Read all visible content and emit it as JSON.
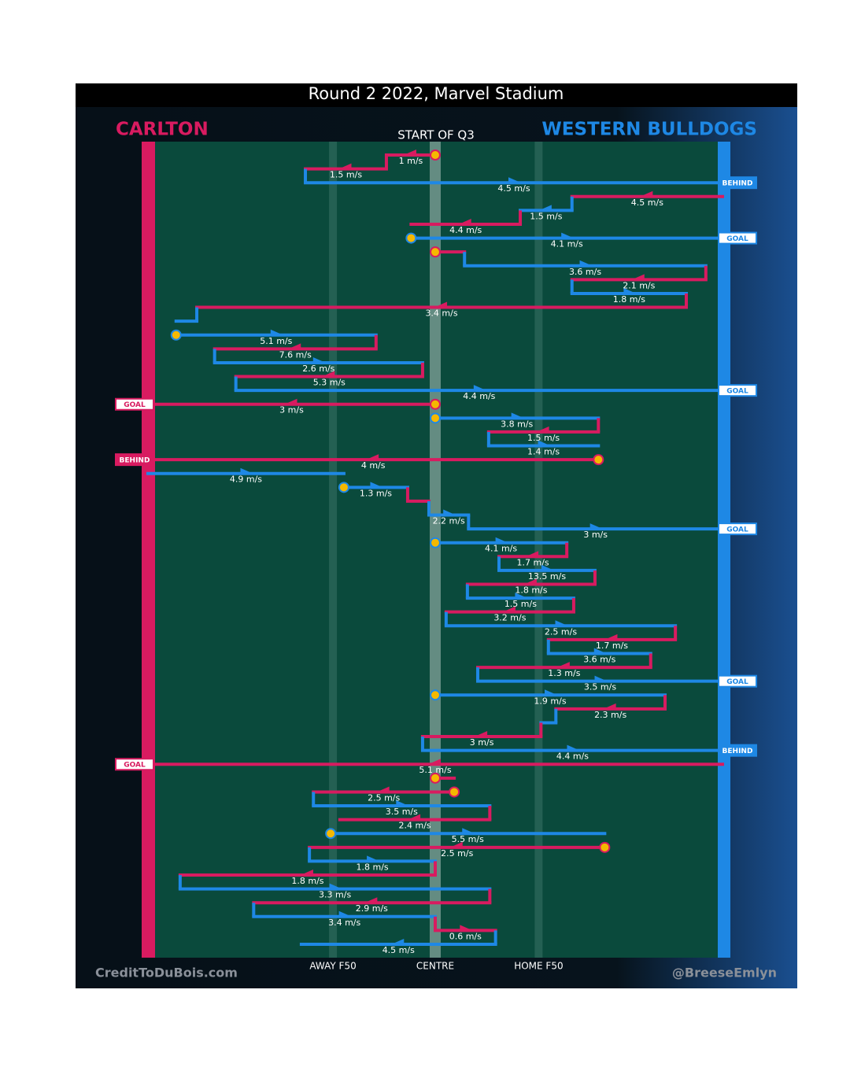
{
  "chart_data": {
    "type": "chain",
    "title": "Round 2 2022, Marvel Stadium",
    "subtitle": "START OF Q3",
    "teams": [
      {
        "name": "CARLTON",
        "color": "#d81b60"
      },
      {
        "name": "WESTERN BULLDOGS",
        "color": "#1e88e5"
      }
    ],
    "xlim": [
      0,
      100
    ],
    "markers": [
      {
        "label": "AWAY F50",
        "x": 32.2
      },
      {
        "label": "CENTRE",
        "x": 50
      },
      {
        "label": "HOME F50",
        "x": 68
      }
    ],
    "credits": [
      "CreditToDuBois.com",
      "@BreeseEmlyn"
    ],
    "segments": [
      {
        "team": "CARLTON",
        "from": 50,
        "to": 41.5,
        "speed": 1,
        "speed_label": "1 m/s",
        "dot": true
      },
      {
        "team": "CARLTON",
        "from": 41.5,
        "to": 27.4,
        "speed": 1.5,
        "speed_label": "1.5 m/s"
      },
      {
        "team": "WESTERN BULLDOGS",
        "from": 27.4,
        "to": 100,
        "speed": 4.5,
        "speed_label": "4.5 m/s",
        "outcome": "BEHIND"
      },
      {
        "team": "CARLTON",
        "from": 100,
        "to": 73.8,
        "speed": 4.5,
        "speed_label": "4.5 m/s"
      },
      {
        "team": "WESTERN BULLDOGS",
        "from": 73.8,
        "to": 64.8,
        "speed": 1.5,
        "speed_label": "1.5 m/s"
      },
      {
        "team": "CARLTON",
        "from": 64.8,
        "to": 45.8,
        "speed": 4.4,
        "speed_label": "4.4 m/s"
      },
      {
        "team": "WESTERN BULLDOGS",
        "from": 45.8,
        "to": 100,
        "speed": 4.1,
        "speed_label": "4.1 m/s",
        "outcome": "GOAL",
        "dot": true
      },
      {
        "team": "CARLTON",
        "from": 50,
        "to": 55.1,
        "speed": null,
        "speed_label": null,
        "dot": true
      },
      {
        "team": "WESTERN BULLDOGS",
        "from": 55.1,
        "to": 97.1,
        "speed": 3.6,
        "speed_label": "3.6 m/s"
      },
      {
        "team": "CARLTON",
        "from": 97.1,
        "to": 73.8,
        "speed": 2.1,
        "speed_label": "2.1 m/s"
      },
      {
        "team": "WESTERN BULLDOGS",
        "from": 73.8,
        "to": 93.7,
        "speed": 1.8,
        "speed_label": "1.8 m/s"
      },
      {
        "team": "CARLTON",
        "from": 93.7,
        "to": 8.5,
        "speed": 3.4,
        "speed_label": "3.4 m/s"
      },
      {
        "team": "WESTERN BULLDOGS",
        "from": 8.5,
        "to": 4.9,
        "speed": null,
        "speed_label": null
      },
      {
        "team": "WESTERN BULLDOGS",
        "from": 4.9,
        "to": 39.7,
        "speed": 5.1,
        "speed_label": "5.1 m/s",
        "dot": true
      },
      {
        "team": "CARLTON",
        "from": 39.7,
        "to": 11.6,
        "speed": 7.6,
        "speed_label": "7.6 m/s"
      },
      {
        "team": "WESTERN BULLDOGS",
        "from": 11.6,
        "to": 47.8,
        "speed": 2.6,
        "speed_label": "2.6 m/s"
      },
      {
        "team": "CARLTON",
        "from": 47.8,
        "to": 15.3,
        "speed": 5.3,
        "speed_label": "5.3 m/s"
      },
      {
        "team": "WESTERN BULLDOGS",
        "from": 15.3,
        "to": 100,
        "speed": 4.4,
        "speed_label": "4.4 m/s",
        "outcome": "GOAL"
      },
      {
        "team": "CARLTON",
        "from": 50,
        "to": 0,
        "speed": 3,
        "speed_label": "3 m/s",
        "outcome": "GOAL",
        "dot": true
      },
      {
        "team": "WESTERN BULLDOGS",
        "from": 50,
        "to": 78.4,
        "speed": 3.8,
        "speed_label": "3.8 m/s",
        "dot": true
      },
      {
        "team": "CARLTON",
        "from": 78.4,
        "to": 59.3,
        "speed": 1.5,
        "speed_label": "1.5 m/s"
      },
      {
        "team": "WESTERN BULLDOGS",
        "from": 59.3,
        "to": 78.4,
        "speed": 1.4,
        "speed_label": "1.4 m/s"
      },
      {
        "team": "CARLTON",
        "from": 78.4,
        "to": 0,
        "speed": 4,
        "speed_label": "4 m/s",
        "outcome": "BEHIND",
        "dot": true
      },
      {
        "team": "WESTERN BULLDOGS",
        "from": 0,
        "to": 34.1,
        "speed": 4.9,
        "speed_label": "4.9 m/s"
      },
      {
        "team": "WESTERN BULLDOGS",
        "from": 34.1,
        "to": 45.2,
        "speed": 1.3,
        "speed_label": "1.3 m/s",
        "dot": true
      },
      {
        "team": "CARLTON",
        "from": 45.2,
        "to": 48.9,
        "speed": null,
        "speed_label": null
      },
      {
        "team": "WESTERN BULLDOGS",
        "from": 48.9,
        "to": 55.8,
        "speed": 2.2,
        "speed_label": "2.2 m/s"
      },
      {
        "team": "WESTERN BULLDOGS",
        "from": 55.8,
        "to": 100,
        "speed": 3,
        "speed_label": "3 m/s",
        "outcome": "GOAL"
      },
      {
        "team": "WESTERN BULLDOGS",
        "from": 50,
        "to": 72.9,
        "speed": 4.1,
        "speed_label": "4.1 m/s",
        "dot": true
      },
      {
        "team": "CARLTON",
        "from": 72.9,
        "to": 61.1,
        "speed": 1.7,
        "speed_label": "1.7 m/s"
      },
      {
        "team": "WESTERN BULLDOGS",
        "from": 61.1,
        "to": 77.8,
        "speed": 13.5,
        "speed_label": "13.5 m/s"
      },
      {
        "team": "CARLTON",
        "from": 77.8,
        "to": 55.6,
        "speed": 1.8,
        "speed_label": "1.8 m/s"
      },
      {
        "team": "WESTERN BULLDOGS",
        "from": 55.6,
        "to": 74.1,
        "speed": 1.5,
        "speed_label": "1.5 m/s"
      },
      {
        "team": "CARLTON",
        "from": 74.1,
        "to": 51.9,
        "speed": 3.2,
        "speed_label": "3.2 m/s"
      },
      {
        "team": "WESTERN BULLDOGS",
        "from": 51.9,
        "to": 91.8,
        "speed": 2.5,
        "speed_label": "2.5 m/s"
      },
      {
        "team": "CARLTON",
        "from": 91.8,
        "to": 69.7,
        "speed": 1.7,
        "speed_label": "1.7 m/s"
      },
      {
        "team": "WESTERN BULLDOGS",
        "from": 69.7,
        "to": 87.5,
        "speed": 3.6,
        "speed_label": "3.6 m/s"
      },
      {
        "team": "CARLTON",
        "from": 87.5,
        "to": 57.4,
        "speed": 1.3,
        "speed_label": "1.3 m/s"
      },
      {
        "team": "WESTERN BULLDOGS",
        "from": 57.4,
        "to": 100,
        "speed": 3.5,
        "speed_label": "3.5 m/s",
        "outcome": "GOAL"
      },
      {
        "team": "WESTERN BULLDOGS",
        "from": 50,
        "to": 90,
        "speed": 1.9,
        "speed_label": "1.9 m/s",
        "dot": true
      },
      {
        "team": "CARLTON",
        "from": 90,
        "to": 71,
        "speed": 2.3,
        "speed_label": "2.3 m/s"
      },
      {
        "team": "WESTERN BULLDOGS",
        "from": 71,
        "to": 68.4,
        "speed": null,
        "speed_label": null
      },
      {
        "team": "CARLTON",
        "from": 68.4,
        "to": 47.8,
        "speed": 3,
        "speed_label": "3 m/s"
      },
      {
        "team": "WESTERN BULLDOGS",
        "from": 47.8,
        "to": 100,
        "speed": 4.4,
        "speed_label": "4.4 m/s",
        "outcome": "BEHIND"
      },
      {
        "team": "CARLTON",
        "from": 100,
        "to": 0,
        "speed": 5.1,
        "speed_label": "5.1 m/s",
        "outcome": "GOAL"
      },
      {
        "team": "CARLTON",
        "from": 50,
        "to": 53.3,
        "speed": null,
        "speed_label": null,
        "dot": true
      },
      {
        "team": "CARLTON",
        "from": 53.3,
        "to": 28.8,
        "speed": 2.5,
        "speed_label": "2.5 m/s",
        "dot": true
      },
      {
        "team": "WESTERN BULLDOGS",
        "from": 28.8,
        "to": 59.5,
        "speed": 3.5,
        "speed_label": "3.5 m/s"
      },
      {
        "team": "CARLTON",
        "from": 59.5,
        "to": 33.4,
        "speed": 2.4,
        "speed_label": "2.4 m/s"
      },
      {
        "team": "WESTERN BULLDOGS",
        "from": 31.8,
        "to": 79.5,
        "speed": 5.5,
        "speed_label": "5.5 m/s",
        "dot": true
      },
      {
        "team": "CARLTON",
        "from": 79.5,
        "to": 28.1,
        "speed": 2.5,
        "speed_label": "2.5 m/s",
        "dot": true
      },
      {
        "team": "WESTERN BULLDOGS",
        "from": 28.1,
        "to": 50,
        "speed": 1.8,
        "speed_label": "1.8 m/s"
      },
      {
        "team": "CARLTON",
        "from": 50,
        "to": 5.6,
        "speed": 1.8,
        "speed_label": "1.8 m/s"
      },
      {
        "team": "WESTERN BULLDOGS",
        "from": 5.6,
        "to": 59.5,
        "speed": 3.3,
        "speed_label": "3.3 m/s"
      },
      {
        "team": "CARLTON",
        "from": 59.5,
        "to": 18.4,
        "speed": 2.9,
        "speed_label": "2.9 m/s"
      },
      {
        "team": "WESTERN BULLDOGS",
        "from": 18.4,
        "to": 50,
        "speed": 3.4,
        "speed_label": "3.4 m/s"
      },
      {
        "team": "CARLTON",
        "from": 50,
        "to": 60.5,
        "speed": 0.6,
        "speed_label": "0.6 m/s"
      },
      {
        "team": "WESTERN BULLDOGS",
        "from": 60.5,
        "to": 26.7,
        "speed": 4.5,
        "speed_label": "4.5 m/s"
      }
    ]
  }
}
